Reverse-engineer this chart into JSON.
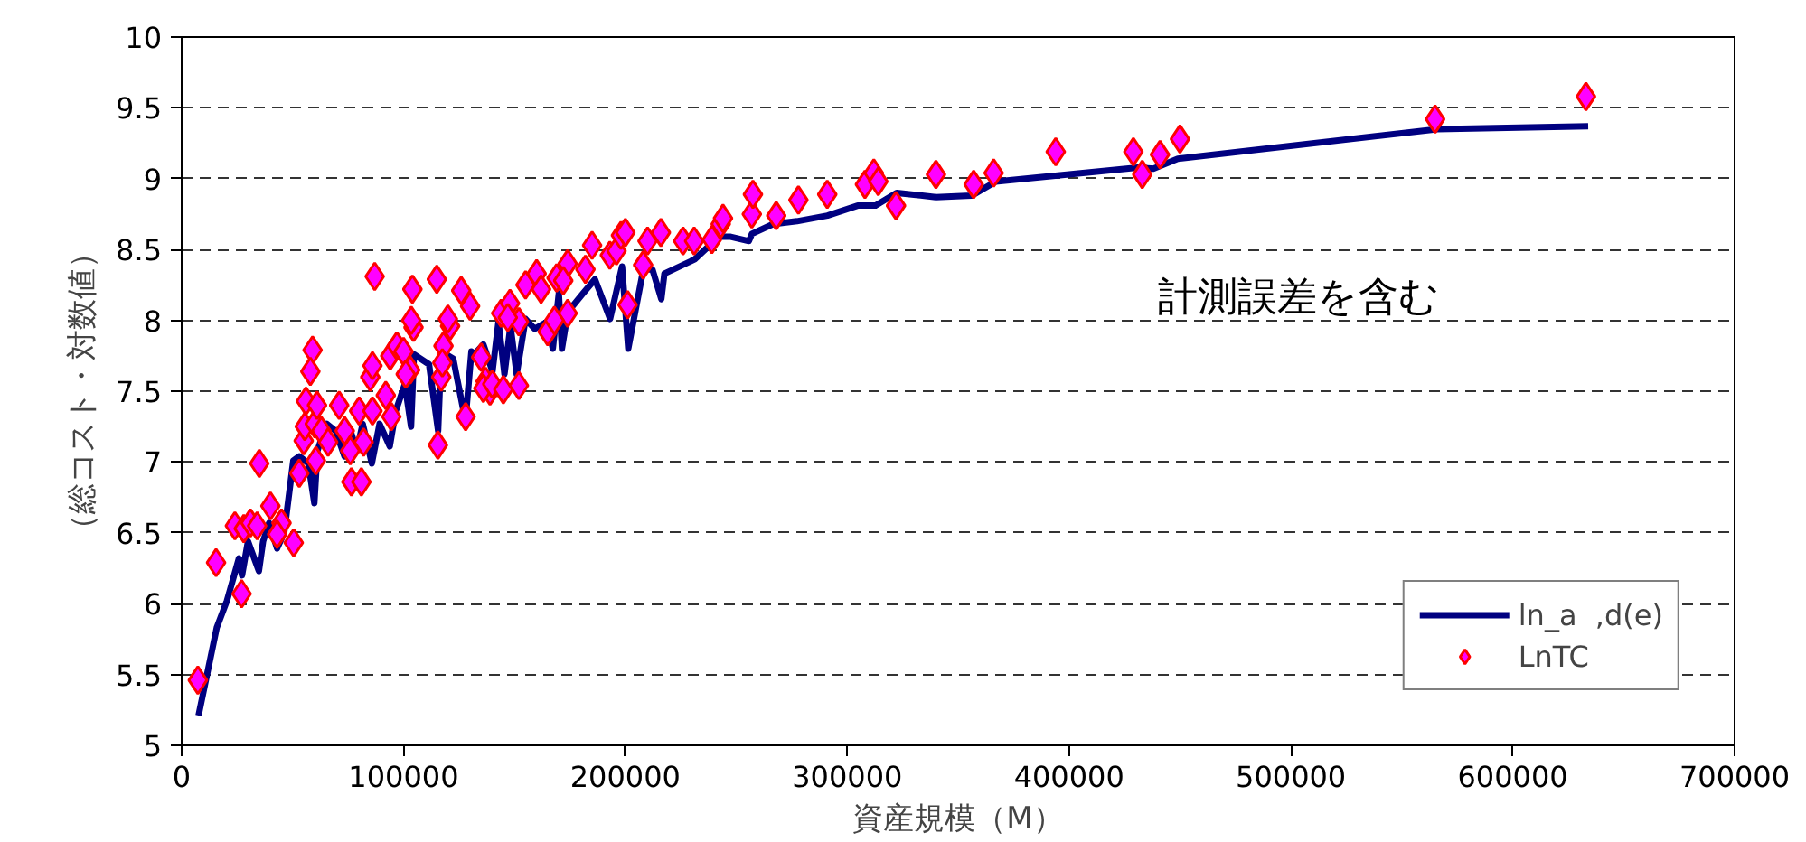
{
  "chart_data": {
    "type": "scatter",
    "xlabel": "資産規模（M）",
    "ylabel": "（総コスト・対数値）",
    "annotations": [
      "計測誤差を含む"
    ],
    "xlim": [
      0,
      700000
    ],
    "ylim": [
      5,
      10
    ],
    "xticks": [
      0,
      100000,
      200000,
      300000,
      400000,
      500000,
      600000,
      700000
    ],
    "yticks": [
      5,
      5.5,
      6,
      6.5,
      7,
      7.5,
      8,
      8.5,
      9,
      9.5,
      10
    ],
    "grid": "y",
    "legend": "bottom right",
    "series": [
      {
        "name": "ln_a  ,d(e)",
        "type": "line",
        "color": "#000080",
        "line_style": "solid",
        "x": [
          7600,
          15800,
          20400,
          25800,
          27200,
          29900,
          34800,
          36700,
          39400,
          43000,
          46200,
          50300,
          53000,
          57100,
          59800,
          61200,
          65300,
          69400,
          73400,
          76100,
          78900,
          81600,
          85700,
          89200,
          93800,
          96500,
          100600,
          103400,
          104700,
          111500,
          115600,
          117000,
          122400,
          127900,
          130600,
          131900,
          136000,
          140100,
          142800,
          145500,
          148200,
          151000,
          155000,
          159100,
          164600,
          167300,
          170000,
          171400,
          174100,
          180900,
          186300,
          193100,
          198500,
          201300,
          208100,
          212200,
          216200,
          217600,
          231200,
          242100,
          247500,
          255700,
          257000,
          266600,
          277400,
          291100,
          304700,
          312800,
          322300,
          340000,
          356000,
          367000,
          432000,
          438000,
          449000,
          566000,
          634000
        ],
        "values": [
          5.21,
          5.83,
          6.02,
          6.32,
          6.2,
          6.44,
          6.23,
          6.44,
          6.57,
          6.39,
          6.5,
          7.01,
          7.04,
          6.99,
          6.71,
          7.08,
          7.27,
          7.22,
          7.04,
          7.22,
          7.08,
          7.27,
          6.99,
          7.27,
          7.11,
          7.36,
          7.55,
          7.25,
          7.76,
          7.69,
          7.22,
          7.78,
          7.73,
          7.29,
          7.78,
          7.76,
          7.83,
          7.64,
          7.99,
          7.62,
          7.96,
          7.62,
          8.01,
          7.94,
          7.99,
          7.8,
          8.19,
          7.8,
          8.06,
          8.19,
          8.29,
          8.01,
          8.38,
          7.8,
          8.36,
          8.36,
          8.15,
          8.33,
          8.43,
          8.59,
          8.59,
          8.56,
          8.61,
          8.68,
          8.7,
          8.74,
          8.81,
          8.81,
          8.9,
          8.87,
          8.88,
          8.98,
          9.08,
          9.07,
          9.14,
          9.35,
          9.37
        ]
      },
      {
        "name": "LnTC",
        "marker": "diamond",
        "color": "#ff00ff",
        "x": [
          7300,
          15500,
          27000,
          24000,
          28000,
          31000,
          34000,
          35000,
          40000,
          45000,
          43000,
          50500,
          53000,
          55000,
          55500,
          56000,
          59000,
          58000,
          60000,
          61000,
          60500,
          63000,
          66000,
          71000,
          73500,
          76000,
          76500,
          81000,
          80000,
          86000,
          82000,
          85000,
          86000,
          87000,
          94000,
          97000,
          100000,
          92000,
          94500,
          104000,
          104500,
          103500,
          103000,
          101000,
          115000,
          115500,
          117000,
          118000,
          117500,
          126000,
          130000,
          121000,
          120000,
          128000,
          135000,
          137000,
          139000,
          136000,
          140000,
          145000,
          152000,
          144000,
          148000,
          152000,
          147000,
          155000,
          160000,
          162000,
          169000,
          174000,
          172000,
          165000,
          174000,
          168000,
          182000,
          185000,
          193000,
          196000,
          198000,
          200000,
          208000,
          201000,
          210000,
          216000,
          226000,
          231000,
          239000,
          243000,
          244000,
          257000,
          257500,
          268000,
          278000,
          291000,
          308000,
          312000,
          314000,
          322000,
          340000,
          357000,
          366000,
          394000,
          429000,
          433000,
          441000,
          450000,
          565000,
          633000
        ],
        "values": [
          5.46,
          6.29,
          6.07,
          6.55,
          6.53,
          6.57,
          6.55,
          6.99,
          6.69,
          6.57,
          6.49,
          6.43,
          6.92,
          7.15,
          7.25,
          7.43,
          7.79,
          7.64,
          7.27,
          7.4,
          7.01,
          7.22,
          7.14,
          7.4,
          7.22,
          7.08,
          6.86,
          6.86,
          7.36,
          7.36,
          7.14,
          7.6,
          7.68,
          8.31,
          7.75,
          7.82,
          7.78,
          7.47,
          7.32,
          8.22,
          7.95,
          8.0,
          7.65,
          7.62,
          8.29,
          7.12,
          7.6,
          7.82,
          7.7,
          8.21,
          8.1,
          7.96,
          8.01,
          7.32,
          7.74,
          7.57,
          7.5,
          7.52,
          7.55,
          7.51,
          7.54,
          8.05,
          8.12,
          7.99,
          8.02,
          8.25,
          8.33,
          8.22,
          8.3,
          8.4,
          8.28,
          7.92,
          8.05,
          8.0,
          8.36,
          8.53,
          8.46,
          8.49,
          8.6,
          8.62,
          8.39,
          8.11,
          8.56,
          8.62,
          8.56,
          8.56,
          8.57,
          8.68,
          8.72,
          8.75,
          8.89,
          8.74,
          8.85,
          8.89,
          8.96,
          9.04,
          8.98,
          8.81,
          9.03,
          8.96,
          9.04,
          9.19,
          9.19,
          9.03,
          9.17,
          9.28,
          9.42,
          9.58
        ]
      }
    ]
  }
}
